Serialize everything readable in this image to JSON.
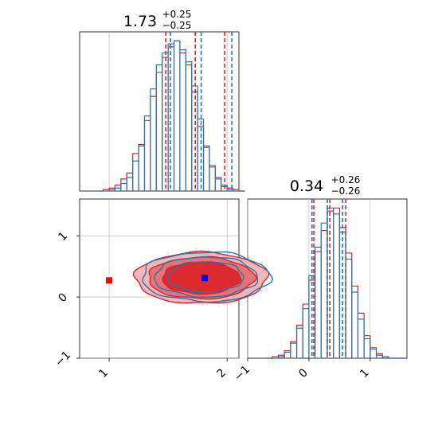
{
  "colors": {
    "red": "#d62728",
    "blue": "#1f77b4",
    "truth_red": "#ff0000",
    "truth_blue": "#0000ff",
    "grid": "#b0b0b0"
  },
  "chart_data": [
    {
      "type": "histogram",
      "panel": "top-left",
      "title_value": "1.73",
      "title_plus": "+0.25",
      "title_minus": "−0.25",
      "xlim": [
        0.75,
        2.1
      ],
      "grid": true,
      "xticks": [
        1.0,
        2.0
      ],
      "series": [
        {
          "color_key": "red",
          "bins": [
            0.95,
            1.0,
            1.05,
            1.1,
            1.15,
            1.2,
            1.25,
            1.3,
            1.35,
            1.4,
            1.45,
            1.5,
            1.55,
            1.6,
            1.65,
            1.7,
            1.75,
            1.8,
            1.85,
            1.9,
            1.95,
            2.0,
            2.05,
            2.1
          ],
          "counts": [
            1,
            2,
            4,
            8,
            12,
            25,
            31,
            47,
            63,
            79,
            89,
            96,
            100,
            92,
            84,
            66,
            43,
            29,
            16,
            9,
            3,
            2,
            1,
            0
          ],
          "quantile_lines": [
            1.48,
            1.73,
            1.98
          ]
        },
        {
          "color_key": "blue",
          "bins": [
            0.95,
            1.0,
            1.05,
            1.1,
            1.15,
            1.2,
            1.25,
            1.3,
            1.35,
            1.4,
            1.45,
            1.5,
            1.55,
            1.6,
            1.65,
            1.7,
            1.75,
            1.8,
            1.85,
            1.9,
            1.95,
            2.0,
            2.05,
            2.1
          ],
          "counts": [
            0,
            1,
            2,
            5,
            9,
            20,
            30,
            50,
            68,
            84,
            92,
            98,
            100,
            94,
            86,
            70,
            48,
            30,
            17,
            8,
            4,
            1,
            0,
            0
          ],
          "quantile_lines": [
            1.52,
            1.78,
            2.04
          ]
        }
      ]
    },
    {
      "type": "histogram",
      "panel": "bottom-right",
      "title_value": "0.34",
      "title_plus": "+0.26",
      "title_minus": "−0.26",
      "xlim": [
        -1.0,
        1.6
      ],
      "grid": true,
      "xticks": [
        -1,
        0,
        1
      ],
      "xtick_labels": [
        "−1",
        "0",
        "1"
      ],
      "series": [
        {
          "color_key": "red",
          "bins": [
            -0.6,
            -0.5,
            -0.4,
            -0.3,
            -0.2,
            -0.1,
            0.0,
            0.1,
            0.2,
            0.3,
            0.4,
            0.5,
            0.6,
            0.7,
            0.8,
            0.9,
            1.0,
            1.1,
            1.2,
            1.3,
            1.4
          ],
          "counts": [
            1,
            2,
            5,
            11,
            22,
            36,
            52,
            71,
            85,
            98,
            100,
            87,
            70,
            48,
            30,
            15,
            7,
            3,
            1,
            0,
            0
          ],
          "quantile_lines": [
            0.08,
            0.34,
            0.6
          ]
        },
        {
          "color_key": "blue",
          "bins": [
            -0.6,
            -0.5,
            -0.4,
            -0.3,
            -0.2,
            -0.1,
            0.0,
            0.1,
            0.2,
            0.3,
            0.4,
            0.5,
            0.6,
            0.7,
            0.8,
            0.9,
            1.0,
            1.1,
            1.2,
            1.3,
            1.4
          ],
          "counts": [
            0,
            1,
            4,
            10,
            20,
            33,
            55,
            74,
            90,
            100,
            96,
            84,
            66,
            44,
            26,
            13,
            6,
            2,
            1,
            0,
            0
          ],
          "quantile_lines": [
            0.05,
            0.3,
            0.55
          ]
        }
      ]
    },
    {
      "type": "contour",
      "panel": "bottom-left",
      "xlim": [
        0.75,
        2.1
      ],
      "ylim": [
        -1.0,
        1.6
      ],
      "grid": true,
      "xticks": [
        1,
        2
      ],
      "yticks": [
        -1,
        0,
        1
      ],
      "ytick_labels": [
        "−1",
        "0",
        "1"
      ],
      "center": {
        "x": 1.8,
        "y": 0.31
      },
      "contour_levels": [
        {
          "sx": 0.56,
          "sy": 0.42
        },
        {
          "sx": 0.45,
          "sy": 0.34
        },
        {
          "sx": 0.33,
          "sy": 0.26
        }
      ],
      "truths": [
        {
          "x": 1.0,
          "y": 0.27,
          "color_key": "truth_red"
        },
        {
          "x": 1.81,
          "y": 0.31,
          "color_key": "truth_blue"
        }
      ]
    }
  ]
}
